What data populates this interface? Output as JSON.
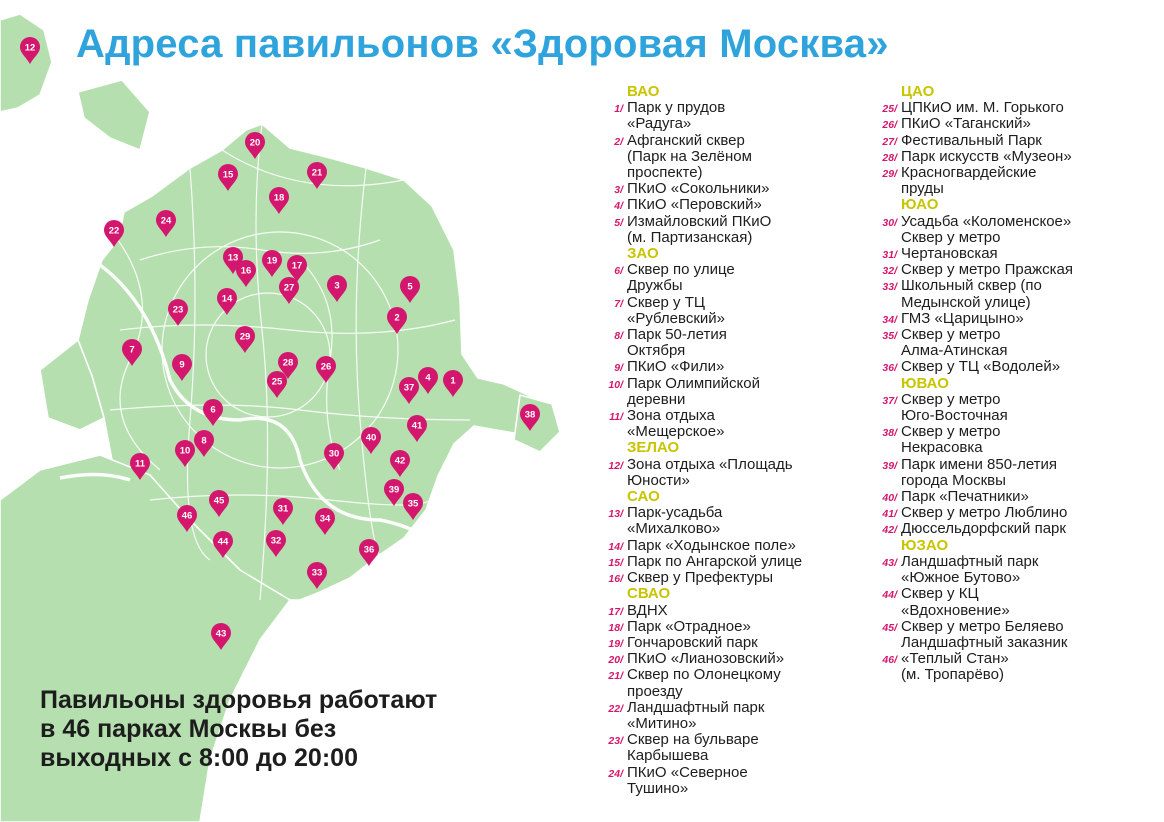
{
  "title": "Адреса павильонов «Здоровая Москва»",
  "footer": [
    "Павильоны здоровья работают",
    "в 46 парках Москвы без",
    "выходных с 8:00 до 20:00"
  ],
  "colors": {
    "title": "#2fa3dc",
    "pin": "#d4176e",
    "district": "#c8c400",
    "map_fill": "#b5dfae",
    "map_border": "#ffffff"
  },
  "legend": {
    "col1": [
      {
        "district": "ВАО",
        "items": [
          {
            "num": "1/",
            "lines": [
              "Парк у прудов",
              "«Радуга»"
            ]
          },
          {
            "num": "2/",
            "lines": [
              "Афганский сквер",
              "(Парк на Зелёном",
              "проспекте)"
            ]
          },
          {
            "num": "3/",
            "lines": [
              "ПКиО «Сокольники»"
            ]
          },
          {
            "num": "4/",
            "lines": [
              "ПКиО «Перовский»"
            ]
          },
          {
            "num": "5/",
            "lines": [
              "Измайловский ПКиО",
              "(м. Партизанская)"
            ]
          }
        ]
      },
      {
        "district": "ЗАО",
        "items": [
          {
            "num": "6/",
            "lines": [
              "Сквер по улице",
              "Дружбы"
            ]
          },
          {
            "num": "7/",
            "lines": [
              "Сквер у ТЦ",
              "«Рублевский»"
            ]
          },
          {
            "num": "8/",
            "lines": [
              "Парк 50-летия",
              "Октября"
            ]
          },
          {
            "num": "9/",
            "lines": [
              "ПКиО «Фили»"
            ]
          },
          {
            "num": "10/",
            "lines": [
              "Парк Олимпийской",
              "деревни"
            ]
          },
          {
            "num": "11/",
            "lines": [
              "Зона отдыха",
              "«Мещерское»"
            ]
          }
        ]
      },
      {
        "district": "ЗЕЛАО",
        "items": [
          {
            "num": "12/",
            "lines": [
              "Зона отдыха «Площадь",
              "Юности»"
            ]
          }
        ]
      },
      {
        "district": "САО",
        "items": [
          {
            "num": "13/",
            "lines": [
              "Парк-усадьба",
              "«Михалково»"
            ]
          },
          {
            "num": "14/",
            "lines": [
              "Парк «Ходынское поле»"
            ]
          },
          {
            "num": "15/",
            "lines": [
              "Парк по Ангарской улице"
            ]
          },
          {
            "num": "16/",
            "lines": [
              "Сквер у Префектуры"
            ]
          }
        ]
      },
      {
        "district": "СВАО",
        "items": [
          {
            "num": "17/",
            "lines": [
              "ВДНХ"
            ]
          },
          {
            "num": "18/",
            "lines": [
              "Парк «Отрадное»"
            ]
          },
          {
            "num": "19/",
            "lines": [
              "Гончаровский парк"
            ]
          },
          {
            "num": "20/",
            "lines": [
              "ПКиО «Лианозовский»"
            ]
          },
          {
            "num": "21/",
            "lines": [
              "Сквер по Олонецкому",
              "проезду"
            ]
          },
          {
            "num": "22/",
            "lines": [
              "Ландшафтный парк",
              "«Митино»"
            ]
          },
          {
            "num": "23/",
            "lines": [
              "Сквер на бульваре",
              "Карбышева"
            ]
          },
          {
            "num": "24/",
            "lines": [
              "ПКиО «Северное",
              "Тушино»"
            ]
          }
        ]
      }
    ],
    "col2": [
      {
        "district": "ЦАО",
        "items": [
          {
            "num": "25/",
            "lines": [
              "ЦПКиО им. М. Горького"
            ]
          },
          {
            "num": "26/",
            "lines": [
              "ПКиО «Таганский»"
            ]
          },
          {
            "num": "27/",
            "lines": [
              "Фестивальный Парк"
            ]
          },
          {
            "num": "28/",
            "lines": [
              "Парк искусств «Музеон»"
            ]
          },
          {
            "num": "29/",
            "lines": [
              "Красногвардейские",
              "пруды"
            ]
          }
        ]
      },
      {
        "district": "ЮАО",
        "items": [
          {
            "num": "30/",
            "lines": [
              "Усадьба «Коломенское»",
              "Сквер у метро"
            ]
          },
          {
            "num": "31/",
            "lines": [
              "Чертановская"
            ]
          },
          {
            "num": "32/",
            "lines": [
              "Сквер у метро Пражская"
            ]
          },
          {
            "num": "33/",
            "lines": [
              "Школьный сквер (по",
              "Медынской  улице)"
            ]
          },
          {
            "num": "34/",
            "lines": [
              "ГМЗ «Царицыно»"
            ]
          },
          {
            "num": "35/",
            "lines": [
              "Сквер у метро",
              "Алма-Атинская"
            ]
          },
          {
            "num": "36/",
            "lines": [
              "Сквер у ТЦ «Водолей»"
            ]
          }
        ]
      },
      {
        "district": "ЮВАО",
        "items": [
          {
            "num": "37/",
            "lines": [
              "Сквер у метро",
              "Юго-Восточная"
            ]
          },
          {
            "num": "38/",
            "lines": [
              "Сквер у метро",
              "Некрасовка"
            ]
          },
          {
            "num": "39/",
            "lines": [
              "Парк имени 850-летия",
              "города Москвы"
            ]
          },
          {
            "num": "40/",
            "lines": [
              "Парк «Печатники»"
            ]
          },
          {
            "num": "41/",
            "lines": [
              "Сквер у метро Люблино"
            ]
          },
          {
            "num": "42/",
            "lines": [
              "Дюссельдорфский парк"
            ]
          }
        ]
      },
      {
        "district": "ЮЗАО",
        "items": [
          {
            "num": "43/",
            "lines": [
              "Ландшафтный парк",
              "«Южное Бутово»"
            ]
          },
          {
            "num": "44/",
            "lines": [
              "Сквер у КЦ",
              "«Вдохновение»"
            ]
          },
          {
            "num": "45/",
            "lines": [
              "Сквер у метро Беляево",
              "Ландшафтный заказник"
            ]
          },
          {
            "num": "46/",
            "lines": [
              "«Теплый Стан»",
              "(м. Тропарёво)"
            ]
          }
        ]
      }
    ]
  },
  "pins": [
    "1",
    "2",
    "3",
    "4",
    "5",
    "6",
    "7",
    "8",
    "9",
    "10",
    "11",
    "12",
    "13",
    "14",
    "15",
    "16",
    "17",
    "18",
    "19",
    "20",
    "21",
    "22",
    "23",
    "24",
    "25",
    "26",
    "27",
    "28",
    "29",
    "30",
    "31",
    "32",
    "33",
    "34",
    "35",
    "36",
    "37",
    "38",
    "39",
    "40",
    "41",
    "42",
    "43",
    "44",
    "45",
    "46"
  ]
}
